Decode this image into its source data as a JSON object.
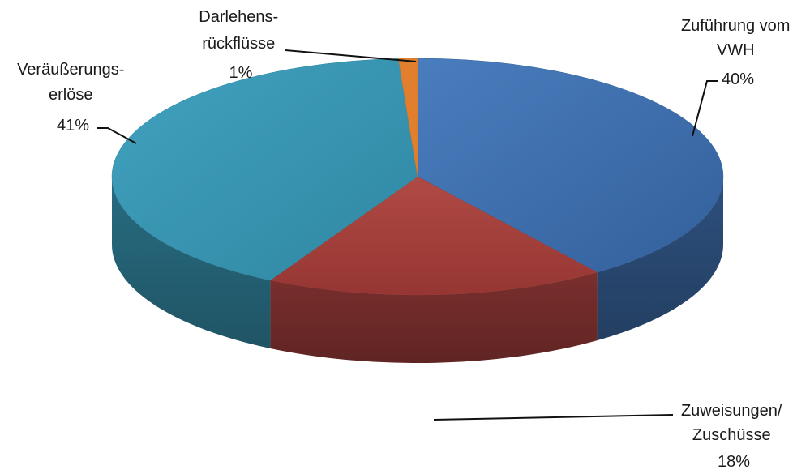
{
  "chart_data": {
    "type": "pie",
    "title": "",
    "slices": [
      {
        "label_lines": [
          "Zuführung vom",
          "VWH"
        ],
        "percent_label": "40%",
        "value": 40,
        "color": "#3f6fad"
      },
      {
        "label_lines": [
          "Zuweisungen/",
          "Zuschüsse"
        ],
        "percent_label": "18%",
        "value": 18,
        "color": "#a9413e"
      },
      {
        "label_lines": [
          "Veräußerungs-",
          "erlöse"
        ],
        "percent_label": "41%",
        "value": 41,
        "color": "#3896b3"
      },
      {
        "label_lines": [
          "Darlehens-",
          "rückflüsse"
        ],
        "percent_label": "1%",
        "value": 1,
        "color": "#e27f2e"
      }
    ]
  }
}
